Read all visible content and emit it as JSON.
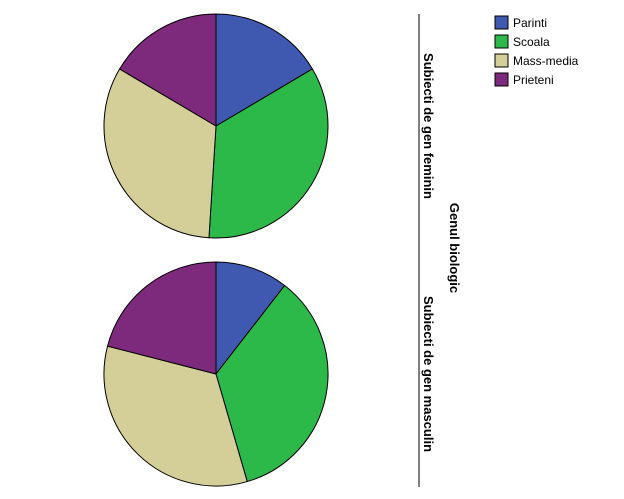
{
  "chart_data": {
    "type": "pie",
    "facet_title": "Genul biologic",
    "categories": [
      "Parinti",
      "Scoala",
      "Mass-media",
      "Prieteni"
    ],
    "colors": [
      "#3f58b0",
      "#2db84a",
      "#d4cf98",
      "#7d2a7d"
    ],
    "legend_position": "top-right",
    "groups": [
      {
        "name": "Subiecti de gen feminin",
        "values": [
          16.5,
          34.5,
          32.5,
          16.5
        ]
      },
      {
        "name": "Subiecti de gen masculin",
        "values": [
          10.5,
          35.0,
          33.5,
          21.0
        ]
      }
    ]
  }
}
